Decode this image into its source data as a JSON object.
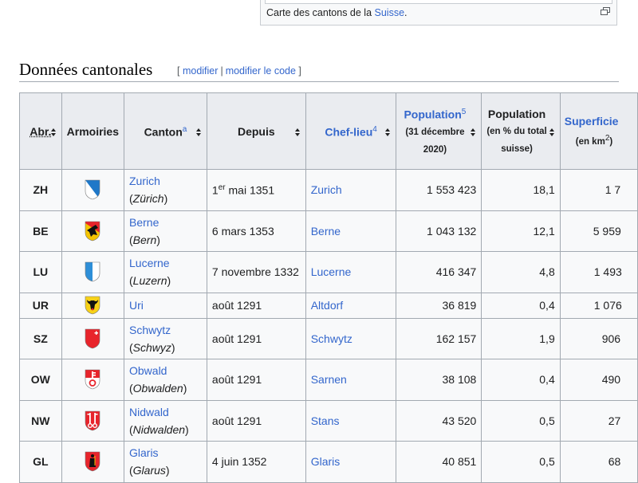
{
  "thumb": {
    "caption_prefix": "Carte des cantons de la ",
    "caption_link": "Suisse",
    "caption_suffix": "."
  },
  "section": {
    "title": "Données cantonales",
    "edit": "modifier",
    "edit_code": "modifier le code",
    "bracket_open": "[",
    "bracket_close": "]",
    "separator": "|"
  },
  "table": {
    "headers": {
      "abbr": "Abr.",
      "arms": "Armoiries",
      "canton": "Canton",
      "canton_note": "a",
      "since": "Depuis",
      "capital": "Chef-lieu",
      "capital_note": "4",
      "pop": "Population",
      "pop_note": "5",
      "pop_sub": "(31 décembre 2020)",
      "pop_pct": "Population",
      "pop_pct_sub": "(en % du total suisse)",
      "area": "Superficie",
      "area_sub_prefix": "(en km",
      "area_sub_sup": "2",
      "area_sub_suffix": ")"
    },
    "rows": [
      {
        "abbr": "ZH",
        "name": "Zurich",
        "native": "Zürich",
        "since_pre": "1",
        "since_sup": "er",
        "since_post": " mai 1351",
        "capital": "Zurich",
        "pop": "1 553 423",
        "pct": "18,1",
        "area": "1 7",
        "shield": "zh"
      },
      {
        "abbr": "BE",
        "name": "Berne",
        "native": "Bern",
        "since_pre": "6 mars 1353",
        "since_sup": "",
        "since_post": "",
        "capital": "Berne",
        "pop": "1 043 132",
        "pct": "12,1",
        "area": "5 959",
        "shield": "be"
      },
      {
        "abbr": "LU",
        "name": "Lucerne",
        "native": "Luzern",
        "since_pre": "7 novembre 1332",
        "since_sup": "",
        "since_post": "",
        "capital": "Lucerne",
        "pop": "416 347",
        "pct": "4,8",
        "area": "1 493",
        "shield": "lu"
      },
      {
        "abbr": "UR",
        "name": "Uri",
        "native": "",
        "since_pre": "août 1291",
        "since_sup": "",
        "since_post": "",
        "capital": "Altdorf",
        "pop": "36 819",
        "pct": "0,4",
        "area": "1 076",
        "shield": "ur"
      },
      {
        "abbr": "SZ",
        "name": "Schwytz",
        "native": "Schwyz",
        "since_pre": "août 1291",
        "since_sup": "",
        "since_post": "",
        "capital": "Schwytz",
        "pop": "162 157",
        "pct": "1,9",
        "area": "906",
        "shield": "sz"
      },
      {
        "abbr": "OW",
        "name": "Obwald",
        "native": "Obwalden",
        "since_pre": "août 1291",
        "since_sup": "",
        "since_post": "",
        "capital": "Sarnen",
        "pop": "38 108",
        "pct": "0,4",
        "area": "490",
        "shield": "ow"
      },
      {
        "abbr": "NW",
        "name": "Nidwald",
        "native": "Nidwalden",
        "since_pre": "août 1291",
        "since_sup": "",
        "since_post": "",
        "capital": "Stans",
        "pop": "43 520",
        "pct": "0,5",
        "area": "27",
        "shield": "nw"
      },
      {
        "abbr": "GL",
        "name": "Glaris",
        "native": "Glarus",
        "since_pre": "4 juin 1352",
        "since_sup": "",
        "since_post": "",
        "capital": "Glaris",
        "pop": "40 851",
        "pct": "0,5",
        "area": "68",
        "shield": "gl"
      }
    ]
  },
  "colors": {
    "link": "#3366cc",
    "border": "#a2a9b1",
    "header_bg": "#eaecf0",
    "cell_bg": "#f8f9fa"
  },
  "icons": {
    "magnify": "magnify-icon",
    "sort": "sort-icon"
  }
}
